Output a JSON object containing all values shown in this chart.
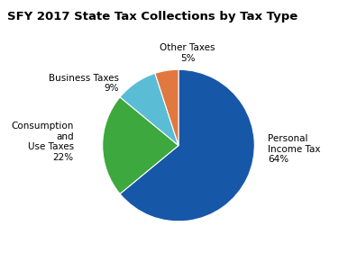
{
  "title": "SFY 2017 State Tax Collections by Tax Type",
  "slices": [
    {
      "label": "Personal\nIncome Tax\n64%",
      "value": 64,
      "color": "#1757a8"
    },
    {
      "label": "Consumption\nand\nUse Taxes\n22%",
      "value": 22,
      "color": "#3da83d"
    },
    {
      "label": "Business Taxes\n9%",
      "value": 9,
      "color": "#5bbcd6"
    },
    {
      "label": "Other Taxes\n5%",
      "value": 5,
      "color": "#e07840"
    }
  ],
  "title_fontsize": 9.5,
  "label_fontsize": 7.5,
  "chart_background": "#ffffff",
  "title_bg": "#d4d4d4",
  "startangle": 90
}
